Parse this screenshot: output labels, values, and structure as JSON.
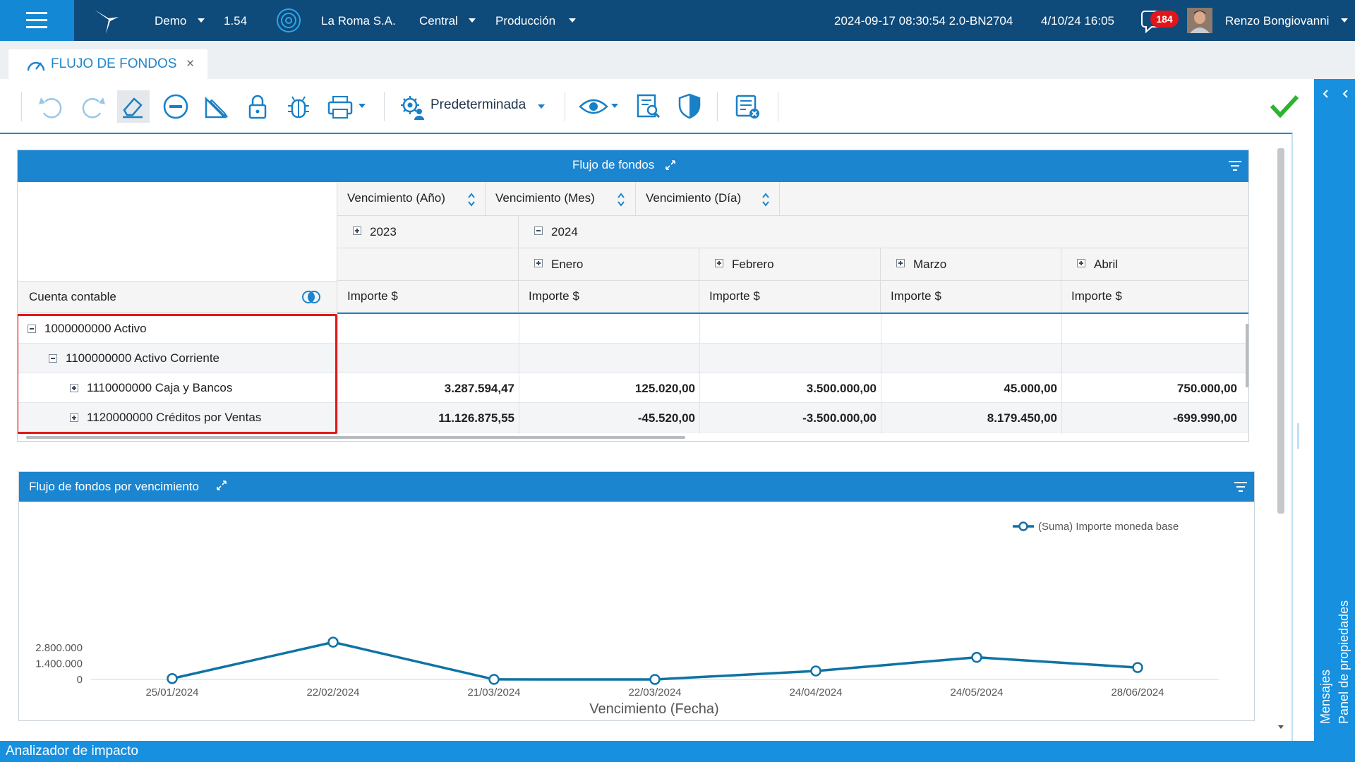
{
  "topbar": {
    "env": "Demo",
    "version": "1.54",
    "company": "La Roma S.A.",
    "branch": "Central",
    "mode": "Producción",
    "build": "2024-09-17 08:30:54 2.0-BN2704",
    "datetime": "4/10/24 16:05",
    "notifications": "184",
    "user": "Renzo Bongiovanni"
  },
  "tab": {
    "title": "FLUJO DE FONDOS",
    "close": "×"
  },
  "toolbar": {
    "preset": "Predeterminada"
  },
  "pivot": {
    "title": "Flujo de fondos",
    "fields": [
      "Vencimiento (Año)",
      "Vencimiento (Mes)",
      "Vencimiento (Día)"
    ],
    "years": [
      "2023",
      "2024"
    ],
    "months": [
      "Enero",
      "Febrero",
      "Marzo",
      "Abril"
    ],
    "row_field": "Cuenta contable",
    "measure": "Importe $",
    "rows": [
      {
        "label": "1000000000 Activo",
        "values": [
          "",
          "",
          "",
          "",
          ""
        ]
      },
      {
        "label": "1100000000 Activo Corriente",
        "values": [
          "",
          "",
          "",
          "",
          ""
        ]
      },
      {
        "label": "1110000000 Caja y Bancos",
        "values": [
          "3.287.594,47",
          "125.020,00",
          "3.500.000,00",
          "45.000,00",
          "750.000,00"
        ]
      },
      {
        "label": "1120000000 Créditos por Ventas",
        "values": [
          "11.126.875,55",
          "-45.520,00",
          "-3.500.000,00",
          "8.179.450,00",
          "-699.990,00"
        ]
      }
    ]
  },
  "chart_panel": {
    "title": "Flujo de fondos por vencimiento"
  },
  "chart_data": {
    "type": "line",
    "xlabel": "Vencimiento (Fecha)",
    "ylabel": "",
    "x": [
      "25/01/2024",
      "22/02/2024",
      "21/03/2024",
      "22/03/2024",
      "24/04/2024",
      "24/05/2024",
      "28/06/2024"
    ],
    "series": [
      {
        "name": "(Suma) Importe moneda base",
        "values": [
          79500,
          3287594,
          5000,
          0,
          750000,
          1950000,
          1050010
        ]
      }
    ],
    "yticks": [
      "0",
      "1.400.000",
      "2.800.000"
    ],
    "ylim": [
      0,
      2800000
    ],
    "legend": "top-right",
    "grid": false,
    "color": "#0f73a4"
  },
  "right_rail": {
    "properties": "Panel de propiedades",
    "messages": "Mensajes"
  },
  "bottom": {
    "label": "Analizador de impacto"
  }
}
